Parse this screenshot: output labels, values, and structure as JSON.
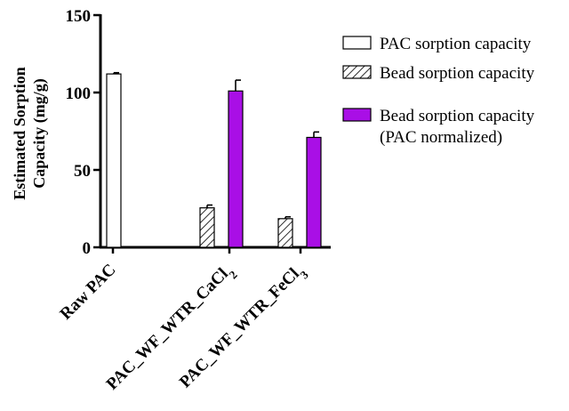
{
  "chart_data": {
    "type": "bar",
    "ylabel_line1": "Estimated Sorption",
    "ylabel_line2": "Capacity (mg/g)",
    "ylim": [
      0,
      150
    ],
    "yticks": [
      0,
      50,
      100,
      150
    ],
    "categories": [
      {
        "base": "Raw PAC",
        "sub": ""
      },
      {
        "base": "PAC_WF_WTR_CaCl",
        "sub": "2"
      },
      {
        "base": "PAC_WF_WTR_FeCl",
        "sub": "3"
      }
    ],
    "series": [
      {
        "name": "PAC sorption capacity",
        "style": "white",
        "values": [
          112,
          null,
          null
        ],
        "errors": [
          0.8,
          null,
          null
        ]
      },
      {
        "name": "Bead sorption capacity",
        "style": "hatched",
        "values": [
          null,
          25.5,
          18.5
        ],
        "errors": [
          null,
          1.8,
          1.2
        ]
      },
      {
        "name": "Bead sorption capacity",
        "name_line2": "(PAC normalized)",
        "style": "purple",
        "values": [
          null,
          101,
          71
        ],
        "errors": [
          null,
          7,
          3.5
        ]
      }
    ],
    "colors": {
      "purple": "#a90fe6",
      "axis": "#000000"
    },
    "legend_position": "right"
  }
}
